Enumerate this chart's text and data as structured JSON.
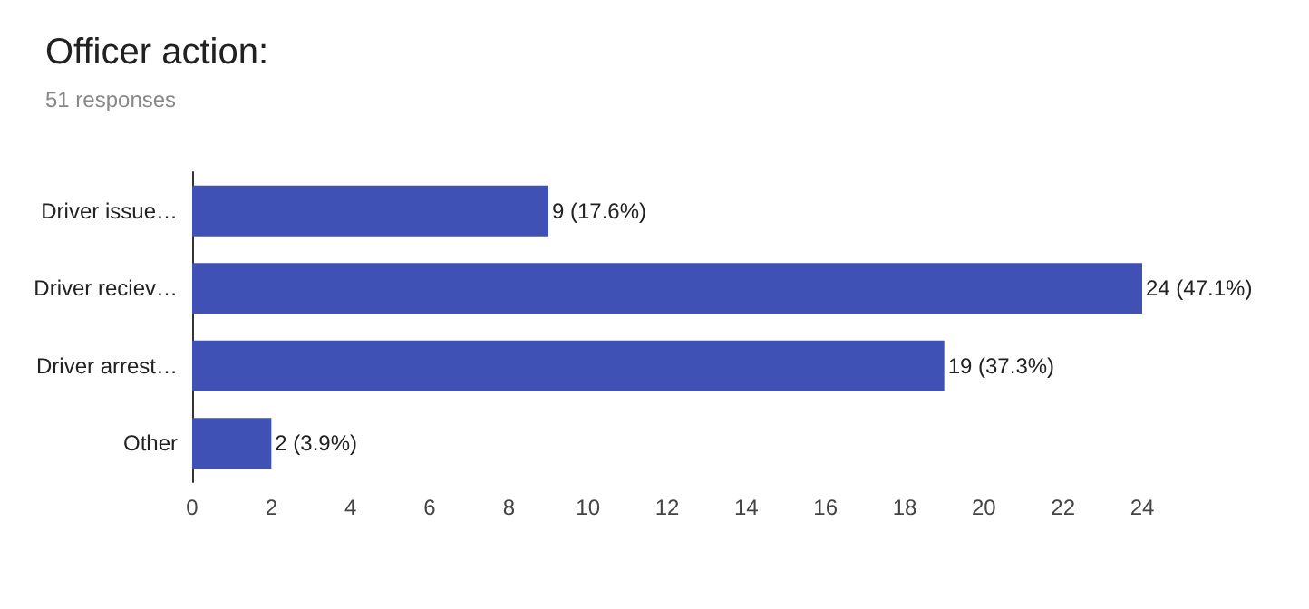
{
  "chart_data": {
    "type": "bar",
    "orientation": "horizontal",
    "title": "Officer action:",
    "subtitle": "51 responses",
    "categories": [
      "Driver issue…",
      "Driver reciev…",
      "Driver arrest…",
      "Other"
    ],
    "values": [
      9,
      24,
      19,
      2
    ],
    "color": "#3f51b5",
    "value_labels": [
      "9 (17.6%)",
      "24 (47.1%)",
      "19 (37.3%)",
      "2 (3.9%)"
    ],
    "xlim": [
      0,
      24
    ],
    "xticks": [
      0,
      2,
      4,
      6,
      8,
      10,
      12,
      14,
      16,
      18,
      20,
      22,
      24
    ],
    "grid": false
  }
}
